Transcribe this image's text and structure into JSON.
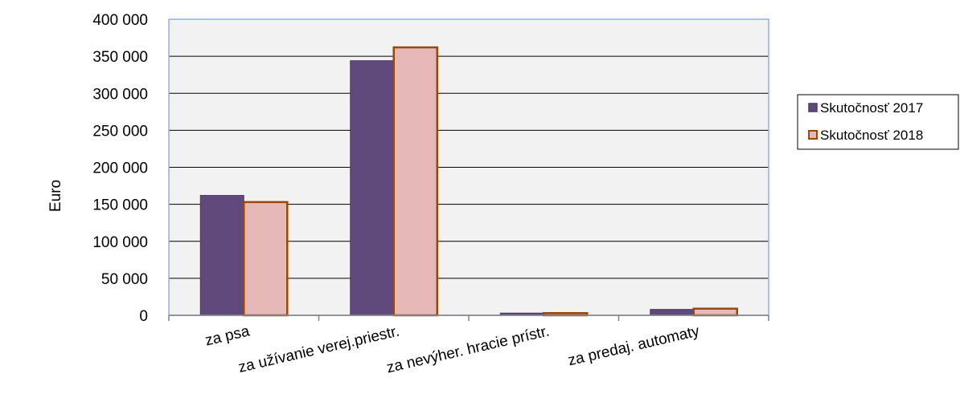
{
  "chart_data": {
    "type": "bar",
    "title": "",
    "xlabel": "",
    "ylabel": "Euro",
    "ylim": [
      0,
      400000
    ],
    "yticks": [
      0,
      50000,
      100000,
      150000,
      200000,
      250000,
      300000,
      350000,
      400000
    ],
    "ytick_labels": [
      "0",
      "50 000",
      "100 000",
      "150 000",
      "200 000",
      "250 000",
      "300 000",
      "350 000",
      "400 000"
    ],
    "categories": [
      "za psa",
      "za užívanie verej.priestr.",
      "za nevýher. hracie prístr.",
      "za predaj. automaty"
    ],
    "series": [
      {
        "name": "Skutočnosť 2017",
        "values": [
          162000,
          344000,
          3000,
          8000
        ],
        "fill": "#5f4a7b",
        "stroke": "#4a3a63"
      },
      {
        "name": "Skutočnosť 2018",
        "values": [
          153000,
          362000,
          3000,
          9000
        ],
        "fill": "#e6b9b8",
        "stroke": "#984807"
      }
    ],
    "grid": true,
    "legend_position": "right",
    "colors": {
      "plot_background": "#f2f2f2",
      "plot_border": "#8db3e2",
      "gridline": "#000000"
    }
  }
}
